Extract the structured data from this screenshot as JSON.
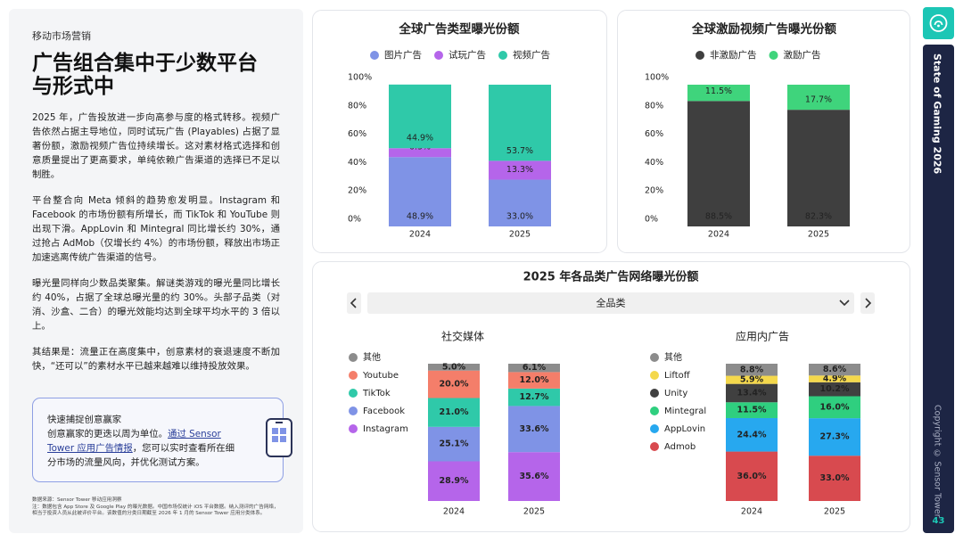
{
  "section": "移动市场营销",
  "title_lines": [
    "广告组合集中于少数平台",
    "与形式中"
  ],
  "paragraphs": [
    "2025 年，广告投放进一步向高参与度的格式转移。视频广告依然占据主导地位，同时试玩广告 (Playables) 占据了显著份额，激励视频广告位持续增长。这对素材格式选择和创意质量提出了更高要求，单纯依赖广告渠道的选择已不足以制胜。",
    "平台整合向 Meta 倾斜的趋势愈发明显。Instagram 和 Facebook 的市场份额有所增长，而 TikTok 和 YouTube 则出现下滑。AppLovin 和 Mintegral 同比增长约 30%，通过抢占 AdMob（仅增长约 4%）的市场份额，释放出市场正加速逃离传统广告渠道的信号。",
    "曝光量同样向少数品类聚集。解谜类游戏的曝光量同比增长约 40%，占据了全球总曝光量的约 30%。头部子品类（对消、沙盒、二合）的曝光效能均达到全球平均水平的 3 倍以上。",
    "其结果是：流量正在高度集中，创意素材的衰退速度不断加快，“还可以”的素材水平已越来越难以维持投放效果。"
  ],
  "callout": {
    "title": "快速捕捉创意赢家",
    "text_before": "创意赢家的更迭以周为单位。",
    "link": "通过 Sensor Tower 应用广告情报",
    "text_after": "，您可以实时查看所在细分市场的流量风向，并优化测试方案。"
  },
  "footnotes": [
    "数据来源：Sensor Tower 移动应用洞察",
    "注：数据包含 App Store 及 Google Play 的曝光数据。中国市场仅统计 iOS 平台数据。纳入测评的广告网络，相当于投资人员从此被评价平台。该数值的分类日期截至 2026 年 1 月的 Sensor Tower 应用分类体系。"
  ],
  "sidebar": {
    "report": "State of Gaming 2026",
    "copyright": "Copyright © Sensor Tower",
    "page": "43"
  },
  "panel": {
    "title": "2025 年各品类广告网络曝光份额",
    "filter": "全品类"
  },
  "chart_data": [
    {
      "type": "bar",
      "stacked": true,
      "title": "全球广告类型曝光份额",
      "categories": [
        "2024",
        "2025"
      ],
      "ylim": [
        0,
        100
      ],
      "yticks": [
        {
          "value": 0,
          "label": "0%"
        },
        {
          "value": 20,
          "label": "20%"
        },
        {
          "value": 40,
          "label": "40%"
        },
        {
          "value": 60,
          "label": "60%"
        },
        {
          "value": 80,
          "label": "80%"
        },
        {
          "value": 100,
          "label": "100%"
        }
      ],
      "series": [
        {
          "name": "图片广告",
          "color": "#7f93e6",
          "values": [
            48.9,
            33
          ],
          "value_labels": [
            "48.9%",
            "33.0%"
          ]
        },
        {
          "name": "试玩广告",
          "color": "#b565ea",
          "values": [
            6.3,
            13.3
          ],
          "value_labels": [
            "6.3%",
            "13.3%"
          ]
        },
        {
          "name": "视频广告",
          "color": "#2fc9a9",
          "values": [
            44.9,
            53.7
          ],
          "value_labels": [
            "44.9%",
            "53.7%"
          ]
        }
      ]
    },
    {
      "type": "bar",
      "stacked": true,
      "title": "全球激励视频广告曝光份额",
      "categories": [
        "2024",
        "2025"
      ],
      "ylim": [
        0,
        100
      ],
      "yticks": [
        {
          "value": 0,
          "label": "0%"
        },
        {
          "value": 20,
          "label": "20%"
        },
        {
          "value": 40,
          "label": "40%"
        },
        {
          "value": 60,
          "label": "60%"
        },
        {
          "value": 80,
          "label": "80%"
        },
        {
          "value": 100,
          "label": "100%"
        }
      ],
      "series": [
        {
          "name": "非激励广告",
          "color": "#3f3f3f",
          "values": [
            88.5,
            82.3
          ],
          "value_labels": [
            "88.5%",
            "82.3%"
          ]
        },
        {
          "name": "激励广告",
          "color": "#3fd47c",
          "values": [
            11.5,
            17.7
          ],
          "value_labels": [
            "11.5%",
            "17.7%"
          ]
        }
      ]
    },
    {
      "type": "bar",
      "stacked": true,
      "title": "社交媒体",
      "categories": [
        "2024",
        "2025"
      ],
      "series": [
        {
          "name": "Instagram",
          "color": "#b565ea",
          "values": [
            28.9,
            35.6
          ],
          "value_labels": [
            "28.9%",
            "35.6%"
          ]
        },
        {
          "name": "Facebook",
          "color": "#7f93e6",
          "values": [
            25.1,
            33.6
          ],
          "value_labels": [
            "25.1%",
            "33.6%"
          ]
        },
        {
          "name": "TikTok",
          "color": "#2fc9a9",
          "values": [
            21,
            12.7
          ],
          "value_labels": [
            "21.0%",
            "12.7%"
          ]
        },
        {
          "name": "Youtube",
          "color": "#f47e6a",
          "values": [
            20,
            12
          ],
          "value_labels": [
            "20.0%",
            "12.0%"
          ]
        },
        {
          "name": "其他",
          "color": "#8c8c8c",
          "values": [
            5,
            6.1
          ],
          "value_labels": [
            "5.0%",
            "6.1%"
          ]
        }
      ]
    },
    {
      "type": "bar",
      "stacked": true,
      "title": "应用内广告",
      "categories": [
        "2024",
        "2025"
      ],
      "series": [
        {
          "name": "Admob",
          "color": "#d84a4f",
          "values": [
            36,
            33
          ],
          "value_labels": [
            "36.0%",
            "33.0%"
          ]
        },
        {
          "name": "AppLovin",
          "color": "#27a8ef",
          "values": [
            24.4,
            27.3
          ],
          "value_labels": [
            "24.4%",
            "27.3%"
          ]
        },
        {
          "name": "Mintegral",
          "color": "#2fcf7f",
          "values": [
            11.5,
            16
          ],
          "value_labels": [
            "11.5%",
            "16.0%"
          ]
        },
        {
          "name": "Unity",
          "color": "#404040",
          "values": [
            13.4,
            10.2
          ],
          "value_labels": [
            "13.4%",
            "10.2%"
          ]
        },
        {
          "name": "Liftoff",
          "color": "#f4d84c",
          "values": [
            5.9,
            4.9
          ],
          "value_labels": [
            "5.9%",
            "4.9%"
          ]
        },
        {
          "name": "其他",
          "color": "#8c8c8c",
          "values": [
            8.8,
            8.6
          ],
          "value_labels": [
            "8.8%",
            "8.6%"
          ]
        }
      ]
    }
  ]
}
